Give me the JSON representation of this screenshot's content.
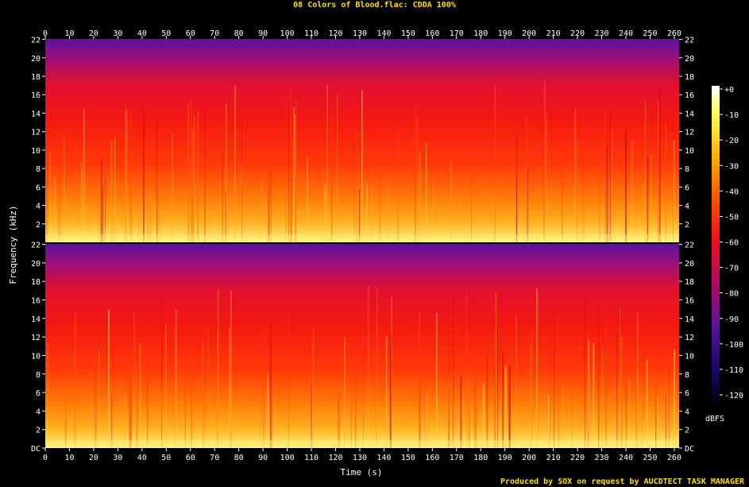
{
  "title": "08 Colors of Blood.flac: CDDA 100%",
  "footer": "Produced by SOX on request by AUCDTECT TASK MANAGER",
  "chart_data": {
    "type": "heatmap",
    "title": "08 Colors of Blood.flac: CDDA 100%",
    "xlabel": "Time (s)",
    "ylabel": "Frequency (kHz)",
    "colorbar_label": "dBFS",
    "xlim": [
      0,
      262
    ],
    "ylim": [
      0,
      22.05
    ],
    "x_ticks": [
      "0",
      "10",
      "20",
      "30",
      "40",
      "50",
      "60",
      "70",
      "80",
      "90",
      "100",
      "110",
      "120",
      "130",
      "140",
      "150",
      "160",
      "170",
      "180",
      "190",
      "200",
      "210",
      "220",
      "230",
      "240",
      "250",
      "260"
    ],
    "y_ticks_top": [
      "2",
      "4",
      "6",
      "8",
      "10",
      "12",
      "14",
      "16",
      "18",
      "20",
      "22"
    ],
    "y_ticks_bottom": [
      "DC",
      "2",
      "4",
      "6",
      "8",
      "10",
      "12",
      "14",
      "16",
      "18",
      "20",
      "22"
    ],
    "colorbar_ticks": [
      "+0",
      "-10",
      "-20",
      "-30",
      "-40",
      "-50",
      "-60",
      "-70",
      "-80",
      "-90",
      "-100",
      "-110",
      "-120"
    ],
    "colorbar_range": [
      -120,
      0
    ],
    "channels": [
      {
        "name": "",
        "note": ""
      },
      {
        "name": "",
        "note": ""
      }
    ],
    "colors": {
      "hot": "#ffff80",
      "mid": "#ff2010",
      "cool": "#5a12a0",
      "cold": "#000010",
      "label": "#ffe000"
    }
  }
}
